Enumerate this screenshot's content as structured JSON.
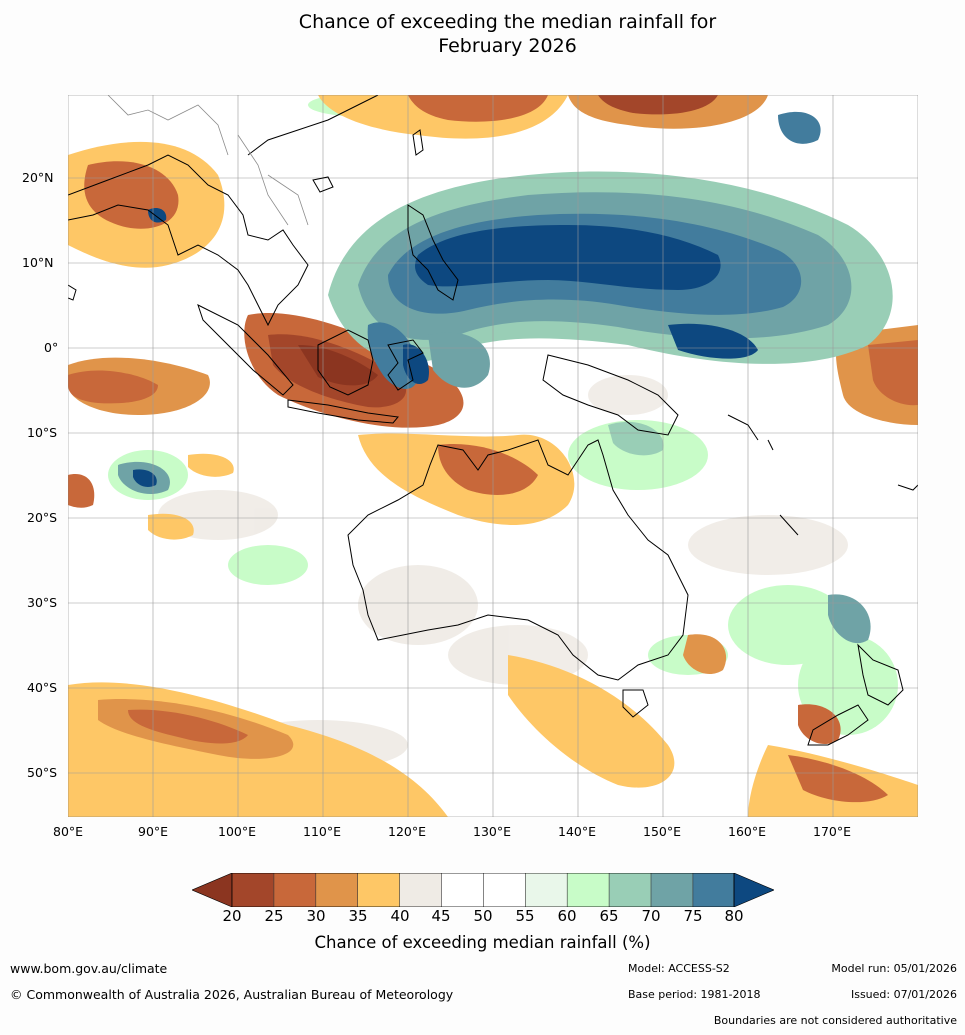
{
  "title_line1": "Chance of exceeding the median rainfall for",
  "title_line2": "February 2026",
  "lon_labels": [
    "80°E",
    "90°E",
    "100°E",
    "110°E",
    "120°E",
    "130°E",
    "140°E",
    "150°E",
    "160°E",
    "170°E"
  ],
  "lat_labels": [
    "20°N",
    "10°N",
    "0°",
    "10°S",
    "20°S",
    "30°S",
    "40°S",
    "50°S"
  ],
  "colorbar": {
    "ticks": [
      "20",
      "25",
      "30",
      "35",
      "40",
      "45",
      "50",
      "55",
      "60",
      "65",
      "70",
      "75",
      "80"
    ],
    "colors": [
      "#a3462a",
      "#c8683a",
      "#e0944a",
      "#fec766",
      "#efebe5",
      "#ffffff",
      "#ffffff",
      "#e9f7ea",
      "#c8fcc8",
      "#99ceb6",
      "#6fa3a6",
      "#427c9d"
    ],
    "under_color": "#8b3520",
    "over_color": "#0d4880",
    "title": "Chance of exceeding median rainfall (%)"
  },
  "footer": {
    "url": "www.bom.gov.au/climate",
    "copyright": "© Commonwealth of Australia 2026, Australian Bureau of Meteorology",
    "model": "Model: ACCESS-S2",
    "base_period": "Base period: 1981-2018",
    "model_run": "Model run: 05/01/2026",
    "issued": "Issued: 07/01/2026",
    "disclaimer": "Boundaries are not considered authoritative"
  }
}
